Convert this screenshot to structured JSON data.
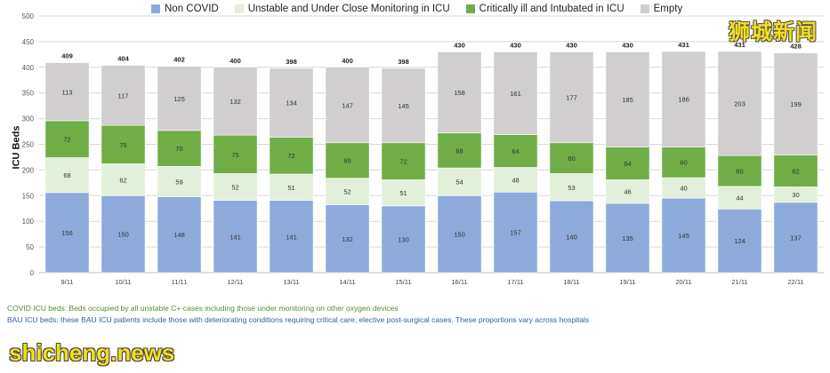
{
  "chart_data": {
    "type": "bar",
    "stacked": true,
    "ylabel": "ICU Beds",
    "ylim": [
      0,
      500
    ],
    "yticks": [
      0,
      50,
      100,
      150,
      200,
      250,
      300,
      350,
      400,
      450,
      500
    ],
    "categories": [
      "9/11",
      "10/11",
      "11/11",
      "12/11",
      "13/11",
      "14/11",
      "15/11",
      "16/11",
      "17/11",
      "18/11",
      "19/11",
      "20/11",
      "21/11",
      "22/11"
    ],
    "series": [
      {
        "name": "Non COVID",
        "color": "#8eaadb",
        "values": [
          156,
          150,
          148,
          141,
          141,
          132,
          130,
          150,
          157,
          140,
          135,
          145,
          124,
          137
        ]
      },
      {
        "name": "Unstable and Under Close Monitoring in ICU",
        "color": "#e2efda",
        "values": [
          68,
          62,
          59,
          52,
          51,
          52,
          51,
          54,
          48,
          53,
          46,
          40,
          44,
          30
        ]
      },
      {
        "name": "Critically ill and Intubated in ICU",
        "color": "#70ad47",
        "values": [
          72,
          75,
          70,
          75,
          72,
          69,
          72,
          68,
          64,
          60,
          64,
          60,
          60,
          62
        ]
      },
      {
        "name": "Empty",
        "color": "#d0cece",
        "values": [
          113,
          117,
          125,
          132,
          134,
          147,
          145,
          158,
          161,
          177,
          185,
          186,
          203,
          199
        ]
      }
    ],
    "totals": [
      409,
      404,
      402,
      400,
      398,
      400,
      398,
      430,
      430,
      430,
      430,
      431,
      431,
      428
    ],
    "legend_position": "top"
  },
  "notes": {
    "covid": "COVID ICU beds: Beds occupied by all unstable C+ cases including those under monitoring on other oxygen devices",
    "bau": "BAU ICU beds: these BAU ICU patients include those with deteriorating conditions requiring critical care, elective post-surgical cases. These proportions vary across hospitals"
  },
  "watermarks": {
    "chinese": "狮城新闻",
    "site": "shicheng.news"
  }
}
